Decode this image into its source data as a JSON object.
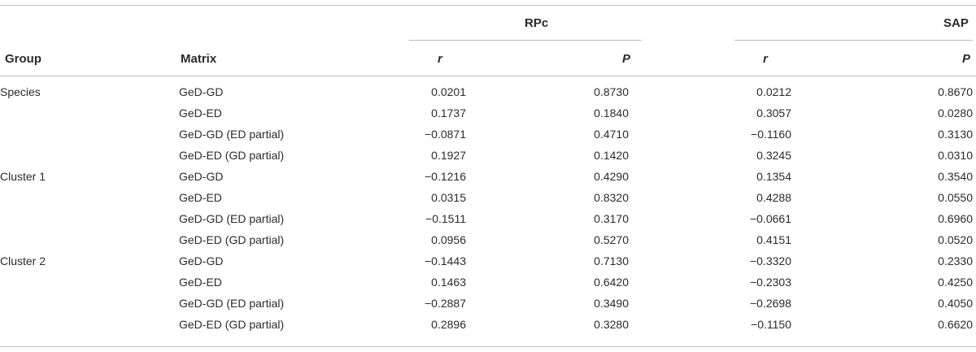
{
  "table": {
    "headers": {
      "group": "Group",
      "matrix": "Matrix",
      "rpc": "RPc",
      "sap": "SAP",
      "rpc_r": "r",
      "rpc_p": "P",
      "sap_r": "r",
      "sap_p": "P"
    },
    "rows": [
      {
        "group": "Species",
        "matrix": "GeD-GD",
        "rpc_r": "0.0201",
        "rpc_p": "0.8730",
        "sap_r": "0.0212",
        "sap_p": "0.8670"
      },
      {
        "group": "",
        "matrix": "GeD-ED",
        "rpc_r": "0.1737",
        "rpc_p": "0.1840",
        "sap_r": "0.3057",
        "sap_p": "0.0280"
      },
      {
        "group": "",
        "matrix": "GeD-GD (ED partial)",
        "rpc_r": "−0.0871",
        "rpc_p": "0.4710",
        "sap_r": "−0.1160",
        "sap_p": "0.3130"
      },
      {
        "group": "",
        "matrix": "GeD-ED (GD partial)",
        "rpc_r": "0.1927",
        "rpc_p": "0.1420",
        "sap_r": "0.3245",
        "sap_p": "0.0310"
      },
      {
        "group": "Cluster 1",
        "matrix": "GeD-GD",
        "rpc_r": "−0.1216",
        "rpc_p": "0.4290",
        "sap_r": "0.1354",
        "sap_p": "0.3540"
      },
      {
        "group": "",
        "matrix": "GeD-ED",
        "rpc_r": "0.0315",
        "rpc_p": "0.8320",
        "sap_r": "0.4288",
        "sap_p": "0.0550"
      },
      {
        "group": "",
        "matrix": "GeD-GD (ED partial)",
        "rpc_r": "−0.1511",
        "rpc_p": "0.3170",
        "sap_r": "−0.0661",
        "sap_p": "0.6960"
      },
      {
        "group": "",
        "matrix": "GeD-ED (GD partial)",
        "rpc_r": "0.0956",
        "rpc_p": "0.5270",
        "sap_r": "0.4151",
        "sap_p": "0.0520"
      },
      {
        "group": "Cluster 2",
        "matrix": "GeD-GD",
        "rpc_r": "−0.1443",
        "rpc_p": "0.7130",
        "sap_r": "−0.3320",
        "sap_p": "0.2330"
      },
      {
        "group": "",
        "matrix": "GeD-ED",
        "rpc_r": "0.1463",
        "rpc_p": "0.6420",
        "sap_r": "−0.2303",
        "sap_p": "0.4250"
      },
      {
        "group": "",
        "matrix": "GeD-GD (ED partial)",
        "rpc_r": "−0.2887",
        "rpc_p": "0.3490",
        "sap_r": "−0.2698",
        "sap_p": "0.4050"
      },
      {
        "group": "",
        "matrix": "GeD-ED (GD partial)",
        "rpc_r": "0.2896",
        "rpc_p": "0.3280",
        "sap_r": "−0.1150",
        "sap_p": "0.6620"
      }
    ]
  }
}
